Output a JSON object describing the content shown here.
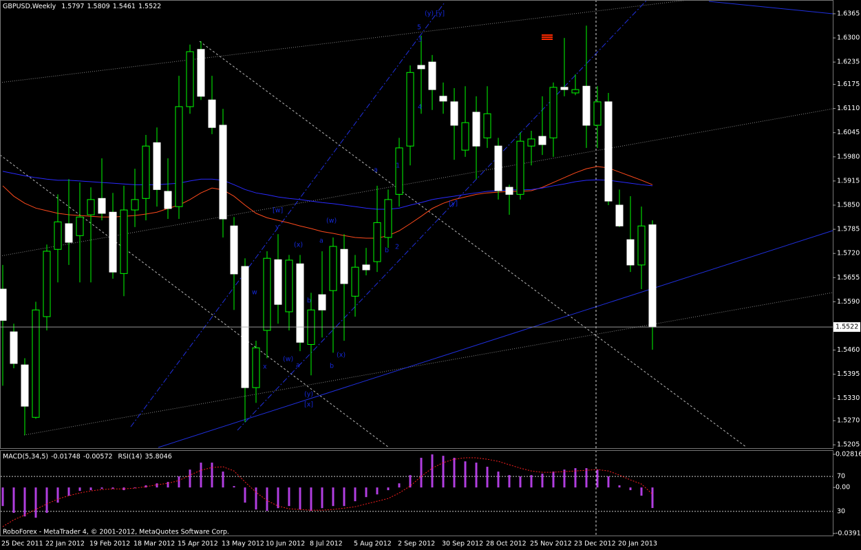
{
  "chart_data": [
    {
      "type": "candlestick",
      "title": "GBPUSD,Weekly",
      "categories": [
        "25 Dec 2011",
        null,
        null,
        null,
        "22 Jan 2012",
        null,
        null,
        null,
        "19 Feb 2012",
        null,
        null,
        null,
        "18 Mar 2012",
        null,
        null,
        null,
        "15 Apr 2012",
        null,
        null,
        null,
        "13 May 2012",
        null,
        null,
        null,
        "10 Jun 2012",
        null,
        null,
        null,
        "8 Jul 2012",
        null,
        null,
        null,
        "5 Aug 2012",
        null,
        null,
        null,
        "2 Sep 2012",
        null,
        null,
        null,
        "30 Sep 2012",
        null,
        null,
        null,
        "28 Oct 2012",
        null,
        null,
        null,
        "25 Nov 2012",
        null,
        null,
        null,
        "23 Dec 2012",
        null,
        null,
        null,
        "20 Jan 2013",
        null,
        null,
        null
      ],
      "open": [
        1.5624,
        1.5509,
        1.542,
        1.5279,
        1.555,
        1.5731,
        1.58,
        1.5768,
        1.5824,
        1.5868,
        1.5831,
        1.5666,
        1.5837,
        1.5868,
        1.6018,
        1.5887,
        1.5846,
        1.6115,
        1.6269,
        1.6133,
        1.6065,
        1.5794,
        1.5685,
        1.5359,
        1.5513,
        1.5703,
        1.5563,
        1.5692,
        1.5475,
        1.5609,
        1.562,
        1.5731,
        1.5605,
        1.5689,
        1.5698,
        1.5763,
        1.5879,
        1.6009,
        1.6226,
        1.6235,
        1.6143,
        1.6128,
        1.5998,
        1.61,
        1.6031,
        1.6009,
        1.5898,
        1.5879,
        1.6009,
        1.6035,
        1.6031,
        1.6167,
        1.6152,
        1.617,
        1.6065,
        1.6128,
        1.585,
        1.5757,
        1.5689,
        1.5797
      ],
      "high": [
        1.5689,
        1.5531,
        1.5438,
        1.559,
        1.5744,
        1.5879,
        1.592,
        1.5911,
        1.5898,
        1.5976,
        1.5883,
        1.5902,
        1.5948,
        1.6039,
        1.6059,
        1.5976,
        1.6198,
        1.6282,
        1.6291,
        1.6198,
        1.6109,
        1.5818,
        1.5707,
        1.5485,
        1.5726,
        1.5772,
        1.5716,
        1.5716,
        1.5614,
        1.5726,
        1.5763,
        1.5772,
        1.5716,
        1.5735,
        1.5902,
        1.5892,
        1.6031,
        1.6226,
        1.6306,
        1.6254,
        1.618,
        1.6165,
        1.617,
        1.6143,
        1.617,
        1.6031,
        1.5905,
        1.6046,
        1.605,
        1.6143,
        1.618,
        1.63,
        1.6202,
        1.6333,
        1.617,
        1.6152,
        1.5892,
        1.5874,
        1.5846,
        1.5809
      ],
      "low": [
        1.5364,
        1.5411,
        1.5231,
        1.5275,
        1.5513,
        1.5642,
        1.5689,
        1.5642,
        1.5642,
        1.5809,
        1.5652,
        1.5605,
        1.5791,
        1.5809,
        1.5846,
        1.5813,
        1.5813,
        1.6096,
        1.6133,
        1.6041,
        1.5763,
        1.5568,
        1.5266,
        1.5318,
        1.5438,
        1.5531,
        1.5513,
        1.5457,
        1.5392,
        1.5494,
        1.5453,
        1.5485,
        1.555,
        1.5661,
        1.567,
        1.5735,
        1.5846,
        1.5957,
        1.6096,
        1.6106,
        1.6096,
        1.5972,
        1.598,
        1.592,
        1.6004,
        1.5865,
        1.5824,
        1.5865,
        1.5957,
        1.5985,
        1.598,
        1.6143,
        1.6146,
        1.6004,
        1.6004,
        1.585,
        1.5791,
        1.567,
        1.5624,
        1.5461
      ],
      "close": [
        1.554,
        1.5424,
        1.5309,
        1.5568,
        1.5726,
        1.5805,
        1.575,
        1.5818,
        1.5865,
        1.5828,
        1.567,
        1.5837,
        1.5865,
        1.6009,
        1.5892,
        1.5841,
        1.6115,
        1.6263,
        1.6143,
        1.6059,
        1.5813,
        1.5665,
        1.5359,
        1.5466,
        1.5707,
        1.5583,
        1.5702,
        1.5481,
        1.5568,
        1.5568,
        1.5739,
        1.5639,
        1.5683,
        1.5676,
        1.5803,
        1.5865,
        1.6004,
        1.6207,
        1.6217,
        1.6161,
        1.613,
        1.6065,
        1.6072,
        1.6009,
        1.6096,
        1.5889,
        1.5879,
        1.6022,
        1.6028,
        1.6013,
        1.6167,
        1.6161,
        1.6161,
        1.6065,
        1.6128,
        1.5861,
        1.5794,
        1.5689,
        1.5794,
        1.5522
      ],
      "up_color": "#000000",
      "down_color": "#ffffff",
      "wick_color": "#00ff00",
      "lines": [
        {
          "color": "#ff4a1c",
          "values": [
            1.5902,
            1.5874,
            1.5855,
            1.5842,
            1.5835,
            1.5828,
            1.5824,
            1.5822,
            1.582,
            1.5818,
            1.5818,
            1.582,
            1.5822,
            1.5826,
            1.5831,
            1.5841,
            1.585,
            1.5865,
            1.5883,
            1.5896,
            1.5891,
            1.5874,
            1.585,
            1.5828,
            1.5816,
            1.5809,
            1.5802,
            1.5794,
            1.5787,
            1.5779,
            1.5774,
            1.5768,
            1.5763,
            1.5761,
            1.5761,
            1.5768,
            1.5781,
            1.58,
            1.582,
            1.5841,
            1.5855,
            1.5865,
            1.5872,
            1.5879,
            1.5883,
            1.5885,
            1.5887,
            1.5887,
            1.5889,
            1.5898,
            1.5911,
            1.5924,
            1.5937,
            1.5948,
            1.5954,
            1.595,
            1.5939,
            1.5928,
            1.5917,
            1.5905
          ]
        },
        {
          "color": "#2a2aff",
          "values": [
            1.5941,
            1.5935,
            1.5929,
            1.5924,
            1.592,
            1.5917,
            1.5917,
            1.5915,
            1.5913,
            1.5911,
            1.5909,
            1.5907,
            1.5905,
            1.5905,
            1.5905,
            1.5907,
            1.5909,
            1.5915,
            1.592,
            1.592,
            1.5917,
            1.5905,
            1.5892,
            1.5883,
            1.5878,
            1.5872,
            1.5868,
            1.5865,
            1.5861,
            1.5857,
            1.5854,
            1.585,
            1.5846,
            1.5842,
            1.5839,
            1.5839,
            1.5842,
            1.585,
            1.5857,
            1.5865,
            1.587,
            1.5874,
            1.5879,
            1.5883,
            1.5887,
            1.5889,
            1.5891,
            1.5891,
            1.5892,
            1.5896,
            1.5902,
            1.5907,
            1.5913,
            1.5917,
            1.5918,
            1.5917,
            1.5913,
            1.5909,
            1.5905,
            1.5902
          ]
        }
      ],
      "ylim": [
        1.5198,
        1.6402
      ],
      "yticks": [
        1.6365,
        {
          "value": 1.63,
          "label": "1.6300"
        },
        1.6235,
        1.6175,
        {
          "value": 1.611,
          "label": "1.6110"
        },
        1.6045,
        {
          "value": 1.598,
          "label": "1.5980"
        },
        1.5915,
        {
          "value": 1.585,
          "label": "1.5850"
        },
        1.5785,
        {
          "value": 1.572,
          "label": "1.5720"
        },
        1.5655,
        {
          "value": 1.559,
          "label": "1.5590"
        },
        {
          "value": 1.546,
          "label": "1.5460"
        },
        1.5395,
        {
          "value": 1.533,
          "label": "1.5330"
        },
        {
          "value": 1.527,
          "label": "1.5270"
        },
        1.5205
      ],
      "annotation_color": "#1428d8",
      "annotations": [
        "[w]",
        "y",
        "(x)",
        "(w)",
        "a",
        "w",
        "x",
        "b",
        "(w)",
        "a",
        "b",
        "(x)",
        "(y)",
        "[x]",
        "b",
        "2",
        "a",
        "1",
        "3",
        "4",
        "5",
        "(y)",
        "[y]",
        "[y]"
      ]
    },
    {
      "type": "macd",
      "title": "MACD(5,34,5)",
      "color": "#b13ee0",
      "signal_color": "#ff2020",
      "values": [
        -0.0158,
        -0.0216,
        -0.0246,
        -0.0257,
        -0.0216,
        -0.0129,
        -0.007,
        -0.0029,
        -0.0023,
        -0.0012,
        -0.0012,
        -0.0023,
        -0.0006,
        0.0018,
        0.0035,
        0.0047,
        0.0094,
        0.0152,
        0.0211,
        0.0211,
        0.0135,
        0.0012,
        -0.0129,
        -0.0187,
        -0.0199,
        -0.0176,
        -0.0158,
        -0.0187,
        -0.0199,
        -0.0176,
        -0.0158,
        -0.0158,
        -0.0117,
        -0.0082,
        -0.0059,
        -0.0023,
        0.0035,
        0.0105,
        0.0252,
        0.0281,
        0.0269,
        0.0252,
        0.0222,
        0.0211,
        0.0176,
        0.0135,
        0.0105,
        0.0094,
        0.0105,
        0.0117,
        0.0135,
        0.0152,
        0.0164,
        0.0164,
        0.0152,
        0.0094,
        0.0018,
        -0.0023,
        -0.007,
        -0.01748
      ],
      "signal": [
        -0.0333,
        -0.0275,
        -0.0234,
        -0.0187,
        -0.014,
        -0.0099,
        -0.007,
        -0.0047,
        -0.0029,
        -0.0018,
        -0.0012,
        -0.0012,
        -0.0006,
        0.0006,
        0.0023,
        0.0035,
        0.0059,
        0.0105,
        0.0146,
        0.017,
        0.0176,
        0.014,
        0.0047,
        -0.0041,
        -0.0111,
        -0.0158,
        -0.0181,
        -0.0187,
        -0.0193,
        -0.0193,
        -0.0187,
        -0.0176,
        -0.0164,
        -0.014,
        -0.0117,
        -0.0094,
        -0.0047,
        0.0012,
        0.0094,
        0.0164,
        0.0211,
        0.024,
        0.0252,
        0.0252,
        0.024,
        0.0222,
        0.0193,
        0.0164,
        0.014,
        0.0129,
        0.0129,
        0.0135,
        0.014,
        0.0146,
        0.0152,
        0.014,
        0.0105,
        0.0064,
        0.0029,
        -0.00572
      ],
      "ylim": [
        -0.03911,
        0.028161
      ],
      "yticks": [
        0.028161,
        {
          "value": 0,
          "label": "0.00"
        },
        -0.03911
      ],
      "rsi_title": "RSI(14)",
      "rsi_value": 35.8046,
      "y2lim": [
        0,
        100
      ],
      "y2ticks": [
        70,
        30
      ]
    }
  ],
  "footer": "RoboForex - MetaTrader 4, © 2001-2012, MetaQuotes Software Corp."
}
